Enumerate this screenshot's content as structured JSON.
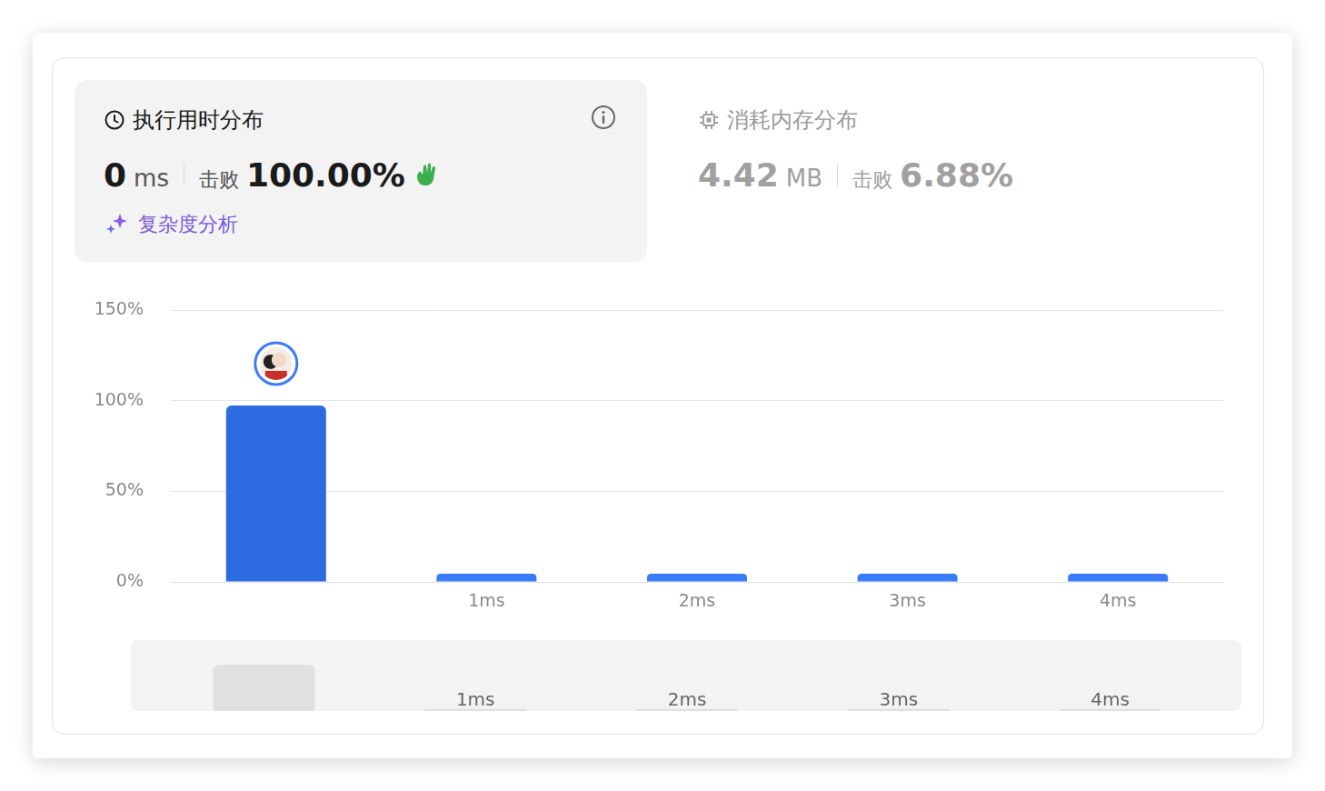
{
  "runtime_panel": {
    "title": "执行用时分布",
    "value": "0",
    "unit": "ms",
    "beats_label": "击败",
    "beats": "100.00%",
    "link": "复杂度分析"
  },
  "memory_panel": {
    "title": "消耗内存分布",
    "value": "4.42",
    "unit": "MB",
    "beats_label": "击败",
    "beats": "6.88%"
  },
  "chart_data": {
    "type": "bar",
    "categories": [
      null,
      "1ms",
      "2ms",
      "3ms",
      "4ms"
    ],
    "values": [
      97.5,
      4.5,
      4.5,
      4.5,
      4.5
    ],
    "colors": [
      "#2d6ce0",
      "#3b7bf5",
      "#3b7bf5",
      "#3b7bf5",
      "#3b7bf5"
    ],
    "ylim": [
      0,
      150
    ],
    "yticks": [
      {
        "value": 0,
        "label": "0%"
      },
      {
        "value": 50,
        "label": "50%"
      },
      {
        "value": 100,
        "label": "100%"
      },
      {
        "value": 150,
        "label": "150%"
      }
    ],
    "grid": true
  }
}
